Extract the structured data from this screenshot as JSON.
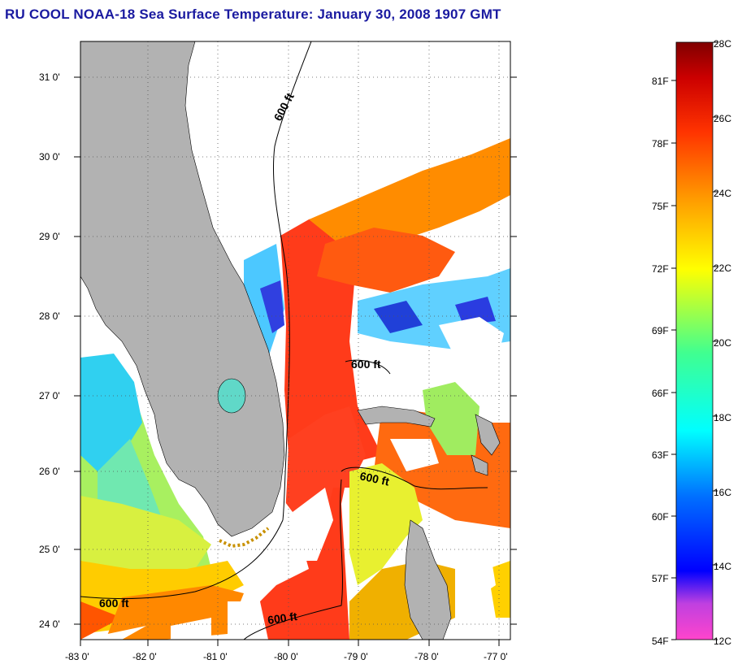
{
  "title": "RU COOL  NOAA-18  Sea Surface Temperature:  January 30, 2008 1907 GMT",
  "map": {
    "lat_labels": [
      "31 0'",
      "30 0'",
      "29 0'",
      "28 0'",
      "27 0'",
      "26 0'",
      "25 0'",
      "24 0'"
    ],
    "lon_labels": [
      "-83 0'",
      "-82 0'",
      "-81 0'",
      "-80 0'",
      "-79 0'",
      "-78 0'",
      "-77 0'"
    ],
    "lat_range": [
      23.85,
      31.45
    ],
    "lon_range": [
      -83.0,
      -76.9
    ],
    "grid": "dotted",
    "land_color": "#b2b2b2",
    "isobath_labels": [
      "600 ft",
      "600 ft",
      "600 ft",
      "600 ft",
      "600 ft"
    ]
  },
  "colorbar": {
    "fahrenheit_labels": [
      "81F",
      "78F",
      "75F",
      "72F",
      "69F",
      "66F",
      "63F",
      "60F",
      "57F",
      "54F"
    ],
    "celsius_labels": [
      "28C",
      "26C",
      "24C",
      "22C",
      "20C",
      "18C",
      "16C",
      "14C",
      "12C"
    ],
    "range_c": [
      12,
      28
    ],
    "colors": [
      "#ff44cc",
      "#b030e0",
      "#0000ff",
      "#0090ff",
      "#00ffff",
      "#40ff90",
      "#ffff00",
      "#ff9900",
      "#ff3300",
      "#cc0000",
      "#800000"
    ]
  }
}
